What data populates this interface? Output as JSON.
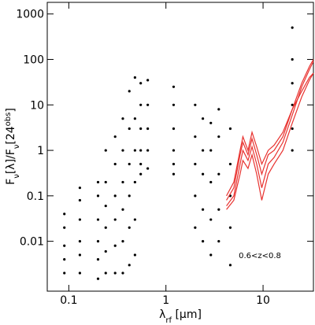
{
  "chart_data": {
    "type": "scatter",
    "xlabel": [
      "λ",
      "rf",
      " [μm]"
    ],
    "ylabel": [
      "F",
      "ν",
      "[λ]/F",
      "ν",
      "[24",
      "obs",
      "]"
    ],
    "annotation": "0.6<z<0.8",
    "xlog": true,
    "ylog": true,
    "xlim": [
      0.06,
      33
    ],
    "ylim": [
      0.0008,
      1800
    ],
    "xticks": [
      0.1,
      1,
      10
    ],
    "yticks": [
      0.01,
      0.1,
      1,
      10,
      100,
      1000
    ],
    "points": {
      "color": "#000000",
      "x": [
        0.09,
        0.09,
        0.09,
        0.09,
        0.09,
        0.13,
        0.13,
        0.13,
        0.13,
        0.13,
        0.13,
        0.2,
        0.2,
        0.2,
        0.2,
        0.2,
        0.2,
        0.24,
        0.24,
        0.24,
        0.24,
        0.24,
        0.24,
        0.3,
        0.3,
        0.3,
        0.3,
        0.3,
        0.3,
        0.36,
        0.36,
        0.36,
        0.36,
        0.36,
        0.36,
        0.42,
        0.42,
        0.42,
        0.42,
        0.42,
        0.42,
        0.48,
        0.48,
        0.48,
        0.48,
        0.48,
        0.48,
        0.55,
        0.55,
        0.55,
        0.55,
        0.55,
        0.55,
        0.65,
        0.65,
        0.65,
        0.65,
        0.65,
        1.2,
        1.2,
        1.2,
        1.2,
        1.2,
        1.2,
        2.0,
        2.0,
        2.0,
        2.0,
        2.0,
        2.4,
        2.4,
        2.4,
        2.4,
        2.4,
        2.9,
        2.9,
        2.9,
        2.9,
        2.9,
        3.5,
        3.5,
        3.5,
        3.5,
        3.5,
        4.6,
        4.6,
        4.6,
        4.6,
        4.6,
        20,
        20,
        20,
        20,
        20,
        20
      ],
      "y": [
        0.002,
        0.004,
        0.008,
        0.02,
        0.04,
        0.002,
        0.005,
        0.01,
        0.03,
        0.08,
        0.15,
        0.0015,
        0.004,
        0.01,
        0.03,
        0.1,
        0.2,
        0.002,
        0.006,
        0.02,
        0.06,
        0.2,
        1,
        0.002,
        0.008,
        0.03,
        0.1,
        0.5,
        2,
        0.002,
        0.01,
        0.05,
        0.2,
        1,
        5,
        0.003,
        0.02,
        0.1,
        0.5,
        3,
        20,
        0.005,
        0.03,
        0.2,
        1,
        5,
        40,
        0.3,
        0.5,
        1,
        3,
        10,
        30,
        0.4,
        1,
        3,
        10,
        35,
        0.3,
        0.5,
        1,
        3,
        10,
        25,
        0.02,
        0.1,
        0.5,
        2,
        10,
        0.01,
        0.05,
        0.3,
        1,
        5,
        0.005,
        0.03,
        0.2,
        1,
        4,
        0.01,
        0.05,
        0.3,
        2,
        8,
        0.003,
        0.02,
        0.1,
        0.5,
        3,
        1,
        3,
        10,
        30,
        100,
        500
      ]
    },
    "x": [
      4.2,
      5,
      5.8,
      6.2,
      7,
      7.7,
      8.6,
      9.7,
      11.3,
      13,
      16,
      20,
      25,
      30,
      33
    ],
    "series": [
      {
        "color": "#e8322f",
        "values": [
          0.06,
          0.1,
          0.5,
          1,
          0.6,
          1.2,
          0.5,
          0.15,
          0.5,
          0.7,
          1.5,
          6,
          25,
          60,
          90
        ]
      },
      {
        "color": "#e8322f",
        "values": [
          0.08,
          0.15,
          0.8,
          1.5,
          0.8,
          1.8,
          0.8,
          0.3,
          0.8,
          1,
          2,
          8,
          30,
          70,
          100
        ]
      },
      {
        "color": "#e8322f",
        "values": [
          0.1,
          0.2,
          1,
          2,
          1,
          2.5,
          1.2,
          0.5,
          1,
          1.3,
          2.5,
          8,
          20,
          40,
          50
        ]
      },
      {
        "color": "#e8322f",
        "values": [
          0.05,
          0.08,
          0.3,
          0.6,
          0.4,
          0.8,
          0.3,
          0.08,
          0.3,
          0.5,
          1,
          4,
          15,
          35,
          50
        ]
      }
    ]
  }
}
